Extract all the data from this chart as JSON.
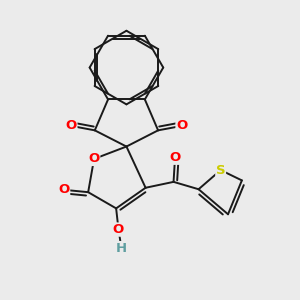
{
  "background_color": "#ebebeb",
  "bond_color": "#1a1a1a",
  "bond_width": 1.4,
  "dbo": 0.12,
  "atom_colors": {
    "O": "#ff0000",
    "S": "#cccc00",
    "H": "#5f9ea0",
    "C": "#1a1a1a"
  },
  "font_size_atom": 9.5,
  "figsize": [
    3.0,
    3.0
  ],
  "dpi": 100,
  "xlim": [
    0,
    10
  ],
  "ylim": [
    0,
    10
  ]
}
